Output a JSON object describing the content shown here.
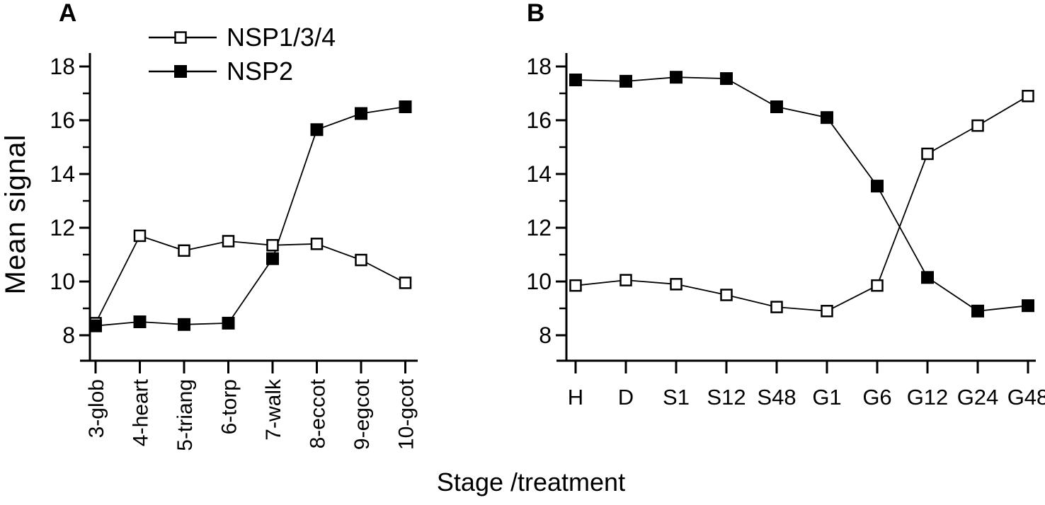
{
  "figure": {
    "panel_a_label": "A",
    "panel_b_label": "B",
    "y_axis_title": "Mean signal",
    "x_axis_title": "Stage /treatment",
    "background_color": "#ffffff",
    "line_color": "#000000"
  },
  "legend": {
    "items": [
      {
        "label": "NSP1/3/4",
        "marker": "open-square"
      },
      {
        "label": "NSP2",
        "marker": "filled-square"
      }
    ]
  },
  "chart_data": [
    {
      "type": "line",
      "panel": "A",
      "title": "",
      "xlabel": "Stage /treatment",
      "ylabel": "Mean signal",
      "categories": [
        "3-glob",
        "4-heart",
        "5-triang",
        "6-torp",
        "7-walk",
        "8-eccot",
        "9-egcot",
        "10-gcot"
      ],
      "series": [
        {
          "name": "NSP1/3/4",
          "marker": "open-square",
          "values": [
            8.45,
            11.7,
            11.15,
            11.5,
            11.35,
            11.4,
            10.8,
            9.95
          ]
        },
        {
          "name": "NSP2",
          "marker": "filled-square",
          "values": [
            8.35,
            8.5,
            8.4,
            8.45,
            10.85,
            15.65,
            16.25,
            16.5
          ]
        }
      ],
      "ylim": [
        7,
        18.5
      ],
      "yticks": [
        8,
        10,
        12,
        14,
        16,
        18
      ],
      "yticks_minor": [
        9,
        11,
        13,
        15,
        17
      ],
      "grid": false,
      "tick_label_rotation": -90,
      "legend_position": "top-left"
    },
    {
      "type": "line",
      "panel": "B",
      "title": "",
      "xlabel": "Stage /treatment",
      "ylabel": "Mean signal",
      "categories": [
        "H",
        "D",
        "S1",
        "S12",
        "S48",
        "G1",
        "G6",
        "G12",
        "G24",
        "G48"
      ],
      "series": [
        {
          "name": "NSP1/3/4",
          "marker": "open-square",
          "values": [
            9.85,
            10.05,
            9.9,
            9.5,
            9.05,
            8.9,
            9.85,
            14.75,
            15.8,
            16.9
          ]
        },
        {
          "name": "NSP2",
          "marker": "filled-square",
          "values": [
            17.5,
            17.45,
            17.6,
            17.55,
            16.5,
            16.1,
            13.55,
            10.15,
            8.9,
            9.1
          ]
        }
      ],
      "ylim": [
        7,
        18.5
      ],
      "yticks": [
        8,
        10,
        12,
        14,
        16,
        18
      ],
      "yticks_minor": [
        9,
        11,
        13,
        15,
        17
      ],
      "grid": false,
      "tick_label_rotation": 0,
      "legend_position": "none"
    }
  ]
}
